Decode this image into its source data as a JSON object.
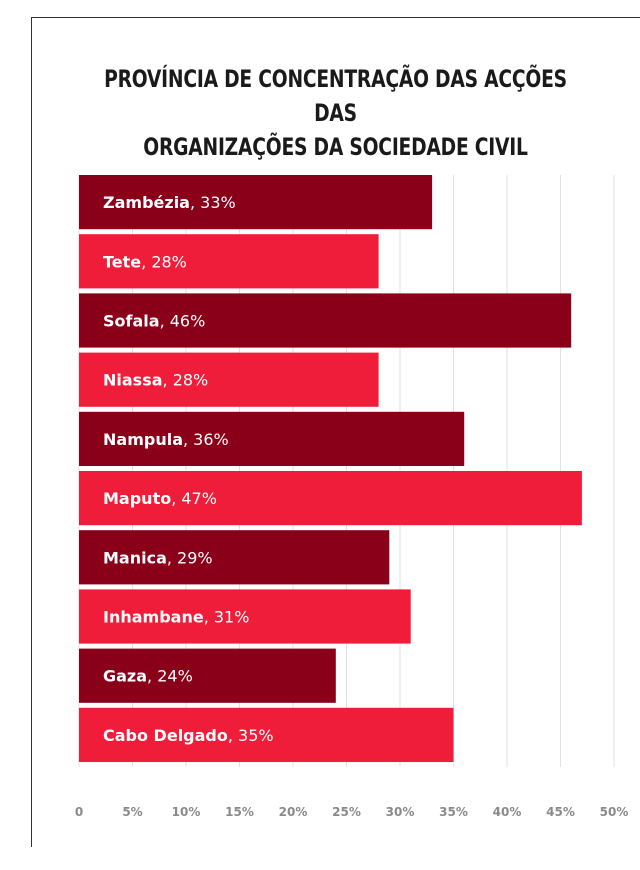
{
  "chart_data": {
    "type": "bar",
    "orientation": "horizontal",
    "title": [
      "PROVÍNCIA DE CONCENTRAÇÃO DAS ACÇÕES DAS",
      "ORGANIZAÇÕES DA SOCIEDADE CIVIL"
    ],
    "categories": [
      "Zambézia",
      "Tete",
      "Sofala",
      "Niassa",
      "Nampula",
      "Maputo",
      "Manica",
      "Inhambane",
      "Gaza",
      "Cabo Delgado"
    ],
    "values": [
      33,
      28,
      46,
      28,
      36,
      47,
      29,
      31,
      24,
      35
    ],
    "value_labels": [
      "33%",
      "28%",
      "46%",
      "28%",
      "36%",
      "47%",
      "29%",
      "31%",
      "24%",
      "35%"
    ],
    "xlim": [
      0,
      50
    ],
    "x_ticks": [
      0,
      5,
      10,
      15,
      20,
      25,
      30,
      35,
      40,
      45,
      50
    ],
    "x_tick_labels": [
      "0",
      "5%",
      "10%",
      "15%",
      "20%",
      "25%",
      "30%",
      "35%",
      "40%",
      "45%",
      "50%"
    ],
    "grid": true,
    "colors": [
      "#8a0018",
      "#ef1d3a"
    ]
  }
}
